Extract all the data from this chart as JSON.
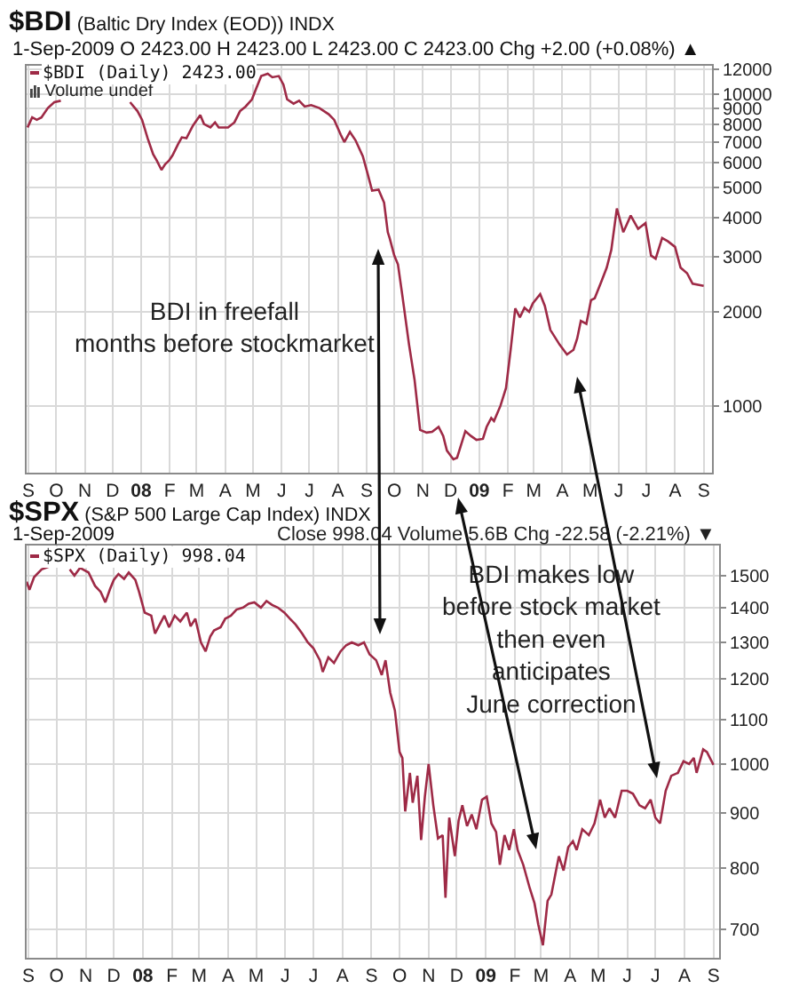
{
  "chart_data": [
    {
      "type": "line",
      "title": "$BDI (Baltic Dry Index (EOD)) INDX",
      "subtitle": "1-Sep-2009 O 2423.00 H 2423.00 L 2423.00 C 2423.00 Chg +2.00 (+0.08%) ▲",
      "annotations": [
        "Volume undef",
        "BDI in freefall\nmonths before stockmarket"
      ],
      "x": [
        "2007-08-31",
        "2007-09-05",
        "2007-09-10",
        "2007-09-15",
        "2007-09-22",
        "2007-09-29",
        "2007-10-06",
        "2007-11-15",
        "2007-12-20",
        "2007-12-28",
        "2008-01-02",
        "2008-01-08",
        "2008-01-14",
        "2008-01-18",
        "2008-01-23",
        "2008-01-27",
        "2008-01-31",
        "2008-02-04",
        "2008-02-10",
        "2008-02-14",
        "2008-02-19",
        "2008-02-26",
        "2008-03-05",
        "2008-03-09",
        "2008-03-16",
        "2008-03-21",
        "2008-03-25",
        "2008-04-04",
        "2008-04-11",
        "2008-04-17",
        "2008-04-23",
        "2008-04-30",
        "2008-05-04",
        "2008-05-10",
        "2008-05-17",
        "2008-05-22",
        "2008-05-29",
        "2008-06-03",
        "2008-06-07",
        "2008-06-14",
        "2008-06-20",
        "2008-06-26",
        "2008-07-03",
        "2008-07-12",
        "2008-07-22",
        "2008-07-28",
        "2008-08-04",
        "2008-08-08",
        "2008-08-14",
        "2008-08-20",
        "2008-08-28",
        "2008-09-02",
        "2008-09-07",
        "2008-09-14",
        "2008-09-20",
        "2008-09-24",
        "2008-09-26",
        "2008-10-01",
        "2008-10-05",
        "2008-10-10",
        "2008-10-17",
        "2008-10-23",
        "2008-10-29",
        "2008-11-05",
        "2008-11-11",
        "2008-11-18",
        "2008-11-23",
        "2008-11-27",
        "2008-12-04",
        "2008-12-08",
        "2008-12-17",
        "2008-12-23",
        "2008-12-29",
        "2009-01-05",
        "2009-01-09",
        "2009-01-14",
        "2009-01-17",
        "2009-01-24",
        "2009-01-30",
        "2009-02-04",
        "2009-02-09",
        "2009-02-14",
        "2009-02-19",
        "2009-02-24",
        "2009-02-28",
        "2009-03-08",
        "2009-03-13",
        "2009-03-19",
        "2009-03-29",
        "2009-04-06",
        "2009-04-13",
        "2009-04-17",
        "2009-04-21",
        "2009-04-27",
        "2009-05-02",
        "2009-05-06",
        "2009-05-13",
        "2009-05-19",
        "2009-05-24",
        "2009-05-30",
        "2009-06-06",
        "2009-06-14",
        "2009-06-22",
        "2009-06-30",
        "2009-07-06",
        "2009-07-11",
        "2009-07-18",
        "2009-07-24",
        "2009-08-01",
        "2009-08-07",
        "2009-08-14",
        "2009-08-20",
        "2009-09-01"
      ],
      "series": [
        {
          "name": "$BDI (Daily) 2423.00",
          "color": "#9e2a46",
          "values": [
            7800,
            8400,
            8250,
            8400,
            9000,
            9400,
            9500,
            null,
            9400,
            8800,
            8250,
            7200,
            6400,
            6100,
            5700,
            5950,
            6100,
            6350,
            6900,
            7250,
            7200,
            7900,
            8550,
            8000,
            7800,
            8100,
            7800,
            7800,
            8100,
            8800,
            9100,
            9600,
            10300,
            11400,
            11600,
            11300,
            11400,
            10700,
            9600,
            9300,
            9500,
            9100,
            9200,
            9000,
            8600,
            8250,
            7400,
            7000,
            7550,
            7100,
            6300,
            5570,
            4890,
            4930,
            4480,
            3600,
            3450,
            3030,
            2840,
            2230,
            1570,
            1210,
            836,
            820,
            825,
            855,
            800,
            718,
            673,
            681,
            829,
            800,
            777,
            783,
            855,
            913,
            893,
            1000,
            1140,
            1510,
            2050,
            1920,
            2060,
            2000,
            2130,
            2280,
            2090,
            1750,
            1570,
            1460,
            1510,
            1640,
            1870,
            1830,
            2180,
            2210,
            2490,
            2770,
            3160,
            4290,
            3600,
            4070,
            3690,
            3850,
            3030,
            2960,
            3450,
            3370,
            3230,
            2770,
            2660,
            2460,
            2423
          ]
        }
      ],
      "xlim": [
        "2007-08-30",
        "2009-09-10"
      ],
      "xticks": [
        {
          "value": "2007-09-01",
          "label": "S"
        },
        {
          "value": "2007-10-01",
          "label": "O"
        },
        {
          "value": "2007-11-01",
          "label": "N"
        },
        {
          "value": "2007-12-01",
          "label": "D"
        },
        {
          "value": "2008-01-01",
          "label": "08"
        },
        {
          "value": "2008-02-01",
          "label": "F"
        },
        {
          "value": "2008-03-01",
          "label": "M"
        },
        {
          "value": "2008-04-01",
          "label": "A"
        },
        {
          "value": "2008-05-01",
          "label": "M"
        },
        {
          "value": "2008-06-01",
          "label": "J"
        },
        {
          "value": "2008-07-01",
          "label": "J"
        },
        {
          "value": "2008-08-01",
          "label": "A"
        },
        {
          "value": "2008-09-01",
          "label": "S"
        },
        {
          "value": "2008-10-01",
          "label": "O"
        },
        {
          "value": "2008-11-01",
          "label": "N"
        },
        {
          "value": "2008-12-01",
          "label": "D"
        },
        {
          "value": "2009-01-01",
          "label": "09"
        },
        {
          "value": "2009-02-01",
          "label": "F"
        },
        {
          "value": "2009-03-01",
          "label": "M"
        },
        {
          "value": "2009-04-01",
          "label": "A"
        },
        {
          "value": "2009-05-01",
          "label": "M"
        },
        {
          "value": "2009-06-01",
          "label": "J"
        },
        {
          "value": "2009-07-01",
          "label": "J"
        },
        {
          "value": "2009-08-01",
          "label": "A"
        },
        {
          "value": "2009-09-01",
          "label": "S"
        }
      ],
      "ylim": [
        610,
        12300
      ],
      "yticks": [
        1000,
        2000,
        3000,
        4000,
        5000,
        6000,
        7000,
        8000,
        9000,
        10000,
        12000
      ],
      "log": true,
      "grid": true,
      "legend": "top left"
    },
    {
      "type": "line",
      "title": "$SPX (S&P 500 Large Cap Index) INDX",
      "subtitle": "1-Sep-2009",
      "annotations": [
        "Close 998.04 Volume 5.6B Chg -22.58 (-2.21%) ▼",
        "BDI makes low\nbefore stock market\nthen even\nanticipates\nJune correction"
      ],
      "x": [
        "2007-08-30",
        "2007-09-02",
        "2007-09-07",
        "2007-09-15",
        "2007-09-24",
        "2007-10-04",
        "2007-10-15",
        "2007-10-20",
        "2007-10-26",
        "2007-11-04",
        "2007-11-11",
        "2007-11-17",
        "2007-11-22",
        "2007-11-27",
        "2007-12-01",
        "2007-12-06",
        "2007-12-12",
        "2007-12-17",
        "2007-12-24",
        "2007-12-28",
        "2008-01-03",
        "2008-01-10",
        "2008-01-14",
        "2008-01-19",
        "2008-01-24",
        "2008-01-29",
        "2008-02-04",
        "2008-02-10",
        "2008-02-17",
        "2008-02-21",
        "2008-02-26",
        "2008-03-03",
        "2008-03-08",
        "2008-03-13",
        "2008-03-17",
        "2008-03-24",
        "2008-03-29",
        "2008-04-04",
        "2008-04-10",
        "2008-04-17",
        "2008-04-23",
        "2008-04-29",
        "2008-05-06",
        "2008-05-12",
        "2008-05-18",
        "2008-05-24",
        "2008-05-31",
        "2008-06-06",
        "2008-06-12",
        "2008-06-19",
        "2008-06-25",
        "2008-07-01",
        "2008-07-08",
        "2008-07-11",
        "2008-07-17",
        "2008-07-23",
        "2008-07-30",
        "2008-08-05",
        "2008-08-11",
        "2008-08-18",
        "2008-08-24",
        "2008-08-30",
        "2008-09-06",
        "2008-09-12",
        "2008-09-16",
        "2008-09-21",
        "2008-09-26",
        "2008-10-01",
        "2008-10-04",
        "2008-10-07",
        "2008-10-12",
        "2008-10-15",
        "2008-10-20",
        "2008-10-24",
        "2008-10-28",
        "2008-11-01",
        "2008-11-06",
        "2008-11-11",
        "2008-11-16",
        "2008-11-19",
        "2008-11-23",
        "2008-11-29",
        "2008-12-03",
        "2008-12-07",
        "2008-12-12",
        "2008-12-17",
        "2008-12-22",
        "2008-12-28",
        "2009-01-02",
        "2009-01-07",
        "2009-01-12",
        "2009-01-16",
        "2009-01-21",
        "2009-01-26",
        "2009-01-31",
        "2009-02-04",
        "2009-02-10",
        "2009-02-17",
        "2009-02-22",
        "2009-02-26",
        "2009-03-03",
        "2009-03-08",
        "2009-03-12",
        "2009-03-17",
        "2009-03-20",
        "2009-03-25",
        "2009-03-30",
        "2009-04-04",
        "2009-04-08",
        "2009-04-14",
        "2009-04-21",
        "2009-04-27",
        "2009-05-03",
        "2009-05-08",
        "2009-05-13",
        "2009-05-19",
        "2009-05-26",
        "2009-06-01",
        "2009-06-07",
        "2009-06-14",
        "2009-06-20",
        "2009-06-26",
        "2009-07-01",
        "2009-07-06",
        "2009-07-12",
        "2009-07-18",
        "2009-07-25",
        "2009-07-31",
        "2009-08-06",
        "2009-08-11",
        "2009-08-14",
        "2009-08-21",
        "2009-08-25",
        "2009-09-01"
      ],
      "series": [
        {
          "name": "$SPX (Daily) 998.04",
          "color": "#9e2a46",
          "values": [
            1480,
            1455,
            1495,
            1520,
            1530,
            null,
            1520,
            1500,
            1525,
            1510,
            1467,
            1448,
            1416,
            1457,
            1486,
            1505,
            1489,
            1510,
            1486,
            1448,
            1385,
            1376,
            1324,
            1350,
            1376,
            1342,
            1376,
            1359,
            1385,
            1345,
            1367,
            1299,
            1274,
            1316,
            1333,
            1342,
            1367,
            1376,
            1394,
            1400,
            1412,
            1416,
            1400,
            1420,
            1408,
            1400,
            1385,
            1367,
            1350,
            1324,
            1299,
            1283,
            1250,
            1219,
            1258,
            1243,
            1274,
            1291,
            1299,
            1291,
            1299,
            1266,
            1250,
            1211,
            1250,
            1166,
            1122,
            1026,
            1013,
            903,
            981,
            920,
            975,
            849,
            932,
            1000,
            915,
            852,
            858,
            750,
            891,
            820,
            885,
            915,
            875,
            897,
            869,
            926,
            932,
            880,
            864,
            805,
            858,
            831,
            869,
            831,
            805,
            765,
            741,
            708,
            677,
            745,
            755,
            795,
            820,
            795,
            836,
            847,
            831,
            869,
            858,
            880,
            926,
            891,
            909,
            891,
            944,
            944,
            938,
            915,
            909,
            926,
            891,
            880,
            944,
            975,
            981,
            1006,
            1000,
            1013,
            981,
            1032,
            1026,
            998
          ]
        }
      ],
      "xlim": [
        "2007-08-30",
        "2009-09-07"
      ],
      "xticks": [
        {
          "value": "2007-09-01",
          "label": "S"
        },
        {
          "value": "2007-10-01",
          "label": "O"
        },
        {
          "value": "2007-11-01",
          "label": "N"
        },
        {
          "value": "2007-12-01",
          "label": "D"
        },
        {
          "value": "2008-01-01",
          "label": "08"
        },
        {
          "value": "2008-02-01",
          "label": "F"
        },
        {
          "value": "2008-03-01",
          "label": "M"
        },
        {
          "value": "2008-04-01",
          "label": "A"
        },
        {
          "value": "2008-05-01",
          "label": "M"
        },
        {
          "value": "2008-06-01",
          "label": "J"
        },
        {
          "value": "2008-07-01",
          "label": "J"
        },
        {
          "value": "2008-08-01",
          "label": "A"
        },
        {
          "value": "2008-09-01",
          "label": "S"
        },
        {
          "value": "2008-10-01",
          "label": "O"
        },
        {
          "value": "2008-11-01",
          "label": "N"
        },
        {
          "value": "2008-12-01",
          "label": "D"
        },
        {
          "value": "2009-01-01",
          "label": "09"
        },
        {
          "value": "2009-02-01",
          "label": "F"
        },
        {
          "value": "2009-03-01",
          "label": "M"
        },
        {
          "value": "2009-04-01",
          "label": "A"
        },
        {
          "value": "2009-05-01",
          "label": "M"
        },
        {
          "value": "2009-06-01",
          "label": "J"
        },
        {
          "value": "2009-07-01",
          "label": "J"
        },
        {
          "value": "2009-08-01",
          "label": "A"
        },
        {
          "value": "2009-09-01",
          "label": "S"
        }
      ],
      "ylim": [
        659,
        1600
      ],
      "yticks": [
        700,
        800,
        900,
        1000,
        1100,
        1200,
        1300,
        1400,
        1500
      ],
      "log": true,
      "grid": true,
      "legend": "top left"
    }
  ]
}
